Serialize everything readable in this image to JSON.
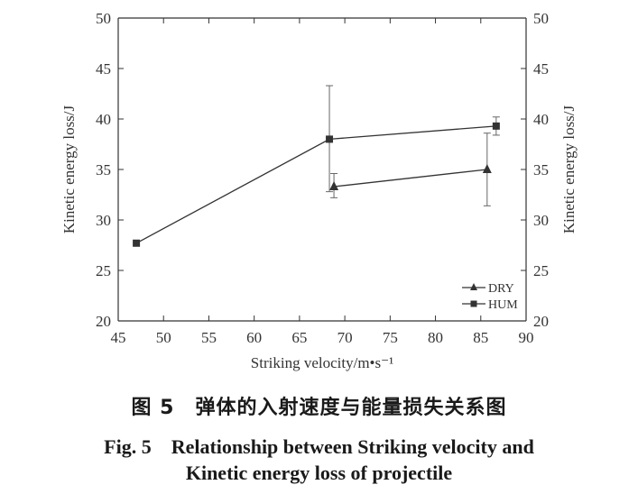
{
  "chart_data": {
    "type": "line",
    "xlabel": "Striking velocity/m•s⁻¹",
    "ylabel_left": "Kinetic energy loss/J",
    "ylabel_right": "Kinetic energy loss/J",
    "xlim": [
      45,
      90
    ],
    "ylim": [
      20,
      50
    ],
    "x_ticks": [
      45,
      50,
      55,
      60,
      65,
      70,
      75,
      80,
      85,
      90
    ],
    "y_ticks": [
      20,
      25,
      30,
      35,
      40,
      45,
      50
    ],
    "grid": false,
    "legend_position": "bottom-right",
    "series": [
      {
        "name": "DRY",
        "marker": "triangle",
        "points": [
          {
            "x": 68.8,
            "y": 33.3,
            "err_low": 32.2,
            "err_high": 34.6
          },
          {
            "x": 85.7,
            "y": 35.0,
            "err_low": 31.4,
            "err_high": 38.6
          }
        ]
      },
      {
        "name": "HUM",
        "marker": "square",
        "points": [
          {
            "x": 47.0,
            "y": 27.7
          },
          {
            "x": 68.3,
            "y": 38.0,
            "err_low": 32.8,
            "err_high": 43.3
          },
          {
            "x": 86.7,
            "y": 39.3,
            "err_low": 38.4,
            "err_high": 40.2
          }
        ]
      }
    ]
  },
  "caption": {
    "cn": "图 5　弹体的入射速度与能量损失关系图",
    "en_line1": "Fig. 5　Relationship between Striking velocity and",
    "en_line2": "Kinetic energy loss of projectile"
  },
  "colors": {
    "ink": "#333333"
  }
}
